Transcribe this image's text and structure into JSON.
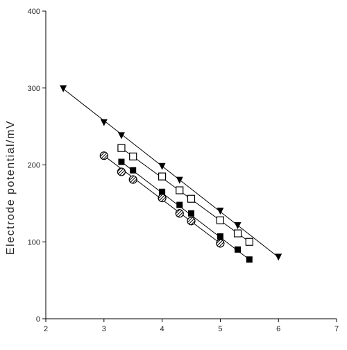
{
  "chart_data": {
    "type": "scatter",
    "title": "",
    "xlabel": "",
    "ylabel": "Electrode potential/mV",
    "xlim": [
      2,
      7
    ],
    "ylim": [
      0,
      400
    ],
    "x_ticks": [
      "2",
      "3",
      "4",
      "5",
      "6",
      "7"
    ],
    "y_ticks": [
      "0",
      "100",
      "200",
      "300",
      "400"
    ],
    "grid": false,
    "legend": "none",
    "series": [
      {
        "marker": "triangle-down-filled",
        "color": "#000000",
        "points": [
          [
            2.3,
            299
          ],
          [
            3.0,
            255
          ],
          [
            3.3,
            238
          ],
          [
            4.0,
            198
          ],
          [
            4.3,
            180
          ],
          [
            5.0,
            140
          ],
          [
            5.3,
            121
          ],
          [
            6.0,
            80
          ]
        ],
        "fit": [
          [
            2.3,
            299
          ],
          [
            6.0,
            80
          ]
        ]
      },
      {
        "marker": "square-open",
        "color": "#000000",
        "points": [
          [
            3.3,
            222
          ],
          [
            3.5,
            211
          ],
          [
            4.0,
            185
          ],
          [
            4.3,
            167
          ],
          [
            4.5,
            156
          ],
          [
            5.0,
            128
          ],
          [
            5.3,
            111
          ],
          [
            5.5,
            100
          ]
        ],
        "fit": [
          [
            3.3,
            222
          ],
          [
            5.5,
            100
          ]
        ]
      },
      {
        "marker": "square-filled",
        "color": "#000000",
        "points": [
          [
            3.3,
            204
          ],
          [
            3.5,
            193
          ],
          [
            4.0,
            165
          ],
          [
            4.3,
            148
          ],
          [
            4.5,
            137
          ],
          [
            5.0,
            107
          ],
          [
            5.3,
            90
          ],
          [
            5.5,
            77
          ]
        ],
        "fit": [
          [
            3.3,
            204
          ],
          [
            5.5,
            77
          ]
        ]
      },
      {
        "marker": "circle-hatched",
        "color": "#000000",
        "points": [
          [
            3.0,
            212
          ],
          [
            3.3,
            191
          ],
          [
            3.5,
            181
          ],
          [
            4.0,
            157
          ],
          [
            4.3,
            137
          ],
          [
            4.5,
            127
          ],
          [
            5.0,
            98
          ]
        ],
        "fit": [
          [
            3.0,
            212
          ],
          [
            5.0,
            98
          ]
        ]
      }
    ]
  }
}
